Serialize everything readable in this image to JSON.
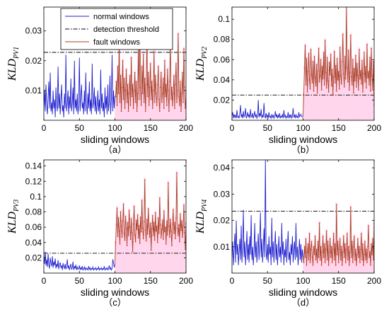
{
  "colors": {
    "normal": "#1f1fcf",
    "fault": "#a8452a",
    "fault_marker": "#ff2a2a",
    "threshold": "#000000",
    "highlight": "#ffd6ec"
  },
  "legend": {
    "placement": "top-left of panel (a)",
    "items": [
      {
        "label": "normal windows",
        "style": "solid",
        "color": "#1f1fcf"
      },
      {
        "label": "detection threshold",
        "style": "dashdot",
        "color": "#000000"
      },
      {
        "label": "fault windows",
        "style": "solid",
        "color": "#a8452a"
      }
    ]
  },
  "chart_data": [
    {
      "id": "a",
      "type": "line",
      "caption": "（a）",
      "xlabel": "sliding windows",
      "ylabel": {
        "main": "KLD",
        "sub": "PV1"
      },
      "xlim": [
        0,
        200
      ],
      "ylim": [
        0,
        0.038
      ],
      "xticks": [
        0,
        50,
        100,
        150,
        200
      ],
      "yticks": [
        0.01,
        0.02,
        0.03
      ],
      "threshold": 0.0228,
      "fault_start": 100,
      "series": [
        {
          "role": "normal",
          "values": [
            0.004,
            0.01,
            0.003,
            0.012,
            0.005,
            0.002,
            0.008,
            0.013,
            0.004,
            0.016,
            0.003,
            0.006,
            0.002,
            0.01,
            0.004,
            0.007,
            0.001,
            0.011,
            0.005,
            0.003,
            0.018,
            0.004,
            0.009,
            0.002,
            0.007,
            0.012,
            0.003,
            0.005,
            0.001,
            0.009,
            0.004,
            0.022,
            0.003,
            0.006,
            0.01,
            0.002,
            0.008,
            0.004,
            0.014,
            0.003,
            0.006,
            0.011,
            0.002,
            0.02,
            0.004,
            0.007,
            0.003,
            0.009,
            0.002,
            0.005,
            0.021,
            0.003,
            0.008,
            0.012,
            0.004,
            0.006,
            0.002,
            0.01,
            0.003,
            0.016,
            0.005,
            0.002,
            0.009,
            0.004,
            0.013,
            0.003,
            0.007,
            0.002,
            0.019,
            0.004,
            0.006,
            0.011,
            0.003,
            0.008,
            0.002,
            0.005,
            0.01,
            0.003,
            0.007,
            0.002,
            0.017,
            0.004,
            0.009,
            0.003,
            0.006,
            0.001,
            0.011,
            0.004,
            0.008,
            0.002,
            0.012,
            0.003,
            0.006,
            0.015,
            0.002,
            0.007,
            0.022,
            0.003,
            0.01,
            0.004,
            0.008
          ]
        },
        {
          "role": "fault",
          "values": [
            0.008,
            0.013,
            0.005,
            0.018,
            0.009,
            0.026,
            0.006,
            0.015,
            0.003,
            0.011,
            0.02,
            0.007,
            0.014,
            0.004,
            0.01,
            0.017,
            0.006,
            0.012,
            0.003,
            0.009,
            0.015,
            0.005,
            0.021,
            0.008,
            0.012,
            0.004,
            0.01,
            0.016,
            0.006,
            0.013,
            0.003,
            0.009,
            0.024,
            0.007,
            0.033,
            0.011,
            0.005,
            0.018,
            0.009,
            0.022,
            0.006,
            0.014,
            0.003,
            0.012,
            0.027,
            0.008,
            0.016,
            0.005,
            0.011,
            0.019,
            0.007,
            0.013,
            0.004,
            0.01,
            0.023,
            0.006,
            0.015,
            0.009,
            0.005,
            0.012,
            0.018,
            0.007,
            0.003,
            0.011,
            0.016,
            0.006,
            0.009,
            0.014,
            0.004,
            0.02,
            0.008,
            0.012,
            0.005,
            0.017,
            0.01,
            0.003,
            0.013,
            0.026,
            0.007,
            0.011,
            0.005,
            0.009,
            0.015,
            0.004,
            0.012,
            0.019,
            0.006,
            0.01,
            0.029,
            0.008,
            0.005,
            0.013,
            0.003,
            0.009,
            0.016,
            0.006,
            0.024,
            0.011,
            0.004,
            0.007
          ]
        }
      ]
    },
    {
      "id": "b",
      "type": "line",
      "caption": "（b）",
      "xlabel": "sliding windows",
      "ylabel": {
        "main": "KLD",
        "sub": "PV2"
      },
      "xlim": [
        0,
        200
      ],
      "ylim": [
        0,
        0.112
      ],
      "xticks": [
        0,
        50,
        100,
        150,
        200
      ],
      "yticks": [
        0.02,
        0.04,
        0.06,
        0.08,
        0.1
      ],
      "threshold": 0.025,
      "fault_start": 100,
      "series": [
        {
          "role": "normal",
          "values": [
            0.004,
            0.008,
            0.002,
            0.006,
            0.003,
            0.005,
            0.002,
            0.01,
            0.003,
            0.004,
            0.002,
            0.007,
            0.015,
            0.003,
            0.006,
            0.002,
            0.009,
            0.003,
            0.005,
            0.012,
            0.002,
            0.004,
            0.008,
            0.003,
            0.006,
            0.002,
            0.011,
            0.004,
            0.003,
            0.007,
            0.002,
            0.005,
            0.009,
            0.003,
            0.006,
            0.002,
            0.004,
            0.02,
            0.003,
            0.007,
            0.004,
            0.011,
            0.002,
            0.005,
            0.003,
            0.017,
            0.004,
            0.002,
            0.007,
            0.003,
            0.005,
            0.002,
            0.008,
            0.003,
            0.004,
            0.002,
            0.006,
            0.003,
            0.005,
            0.002,
            0.004,
            0.009,
            0.003,
            0.006,
            0.002,
            0.005,
            0.003,
            0.007,
            0.002,
            0.004,
            0.003,
            0.006,
            0.002,
            0.01,
            0.003,
            0.005,
            0.002,
            0.004,
            0.003,
            0.008,
            0.002,
            0.005,
            0.003,
            0.006,
            0.002,
            0.004,
            0.012,
            0.003,
            0.005,
            0.002,
            0.006,
            0.003,
            0.004,
            0.002,
            0.008,
            0.003,
            0.005,
            0.006,
            0.004,
            0.003,
            0.004
          ]
        },
        {
          "role": "fault",
          "values": [
            0.025,
            0.052,
            0.074,
            0.035,
            0.061,
            0.028,
            0.048,
            0.066,
            0.04,
            0.031,
            0.07,
            0.045,
            0.037,
            0.058,
            0.029,
            0.063,
            0.042,
            0.034,
            0.055,
            0.027,
            0.049,
            0.071,
            0.038,
            0.044,
            0.06,
            0.03,
            0.053,
            0.041,
            0.067,
            0.035,
            0.079,
            0.047,
            0.032,
            0.062,
            0.039,
            0.028,
            0.057,
            0.045,
            0.065,
            0.034,
            0.05,
            0.026,
            0.043,
            0.068,
            0.037,
            0.054,
            0.029,
            0.061,
            0.04,
            0.048,
            0.031,
            0.072,
            0.044,
            0.036,
            0.058,
            0.085,
            0.046,
            0.033,
            0.063,
            0.041,
            0.112,
            0.052,
            0.038,
            0.069,
            0.03,
            0.047,
            0.084,
            0.043,
            0.035,
            0.06,
            0.027,
            0.051,
            0.039,
            0.064,
            0.033,
            0.056,
            0.044,
            0.03,
            0.07,
            0.041,
            0.049,
            0.036,
            0.059,
            0.028,
            0.046,
            0.067,
            0.038,
            0.053,
            0.032,
            0.075,
            0.042,
            0.048,
            0.035,
            0.062,
            0.029,
            0.071,
            0.044,
            0.03,
            0.058,
            0.015
          ]
        }
      ]
    },
    {
      "id": "c",
      "type": "line",
      "caption": "（c）",
      "xlabel": "sliding windows",
      "ylabel": {
        "main": "KLD",
        "sub": "PV3"
      },
      "xlim": [
        0,
        200
      ],
      "ylim": [
        0,
        0.148
      ],
      "xticks": [
        0,
        50,
        100,
        150,
        200
      ],
      "yticks": [
        0.02,
        0.04,
        0.06,
        0.08,
        0.1,
        0.12,
        0.14
      ],
      "threshold": 0.026,
      "fault_start": 100,
      "series": [
        {
          "role": "normal",
          "values": [
            0.022,
            0.012,
            0.028,
            0.01,
            0.018,
            0.008,
            0.025,
            0.011,
            0.006,
            0.02,
            0.013,
            0.009,
            0.022,
            0.007,
            0.015,
            0.01,
            0.019,
            0.006,
            0.012,
            0.008,
            0.017,
            0.005,
            0.011,
            0.014,
            0.007,
            0.01,
            0.004,
            0.013,
            0.008,
            0.006,
            0.012,
            0.005,
            0.009,
            0.018,
            0.006,
            0.01,
            0.004,
            0.008,
            0.012,
            0.005,
            0.007,
            0.015,
            0.004,
            0.009,
            0.006,
            0.011,
            0.004,
            0.008,
            0.005,
            0.006,
            0.01,
            0.004,
            0.007,
            0.005,
            0.009,
            0.004,
            0.006,
            0.008,
            0.004,
            0.007,
            0.005,
            0.006,
            0.004,
            0.009,
            0.005,
            0.007,
            0.004,
            0.006,
            0.005,
            0.008,
            0.004,
            0.006,
            0.005,
            0.007,
            0.004,
            0.006,
            0.005,
            0.008,
            0.004,
            0.006,
            0.005,
            0.007,
            0.004,
            0.006,
            0.005,
            0.009,
            0.004,
            0.006,
            0.005,
            0.007,
            0.004,
            0.006,
            0.01,
            0.005,
            0.007,
            0.004,
            0.006,
            0.018,
            0.013,
            0.008,
            0.01
          ]
        },
        {
          "role": "fault",
          "values": [
            0.04,
            0.063,
            0.085,
            0.048,
            0.072,
            0.055,
            0.038,
            0.08,
            0.061,
            0.047,
            0.068,
            0.09,
            0.052,
            0.043,
            0.074,
            0.058,
            0.036,
            0.066,
            0.049,
            0.082,
            0.06,
            0.044,
            0.071,
            0.053,
            0.028,
            0.064,
            0.087,
            0.05,
            0.041,
            0.069,
            0.057,
            0.076,
            0.046,
            0.062,
            0.039,
            0.073,
            0.054,
            0.095,
            0.059,
            0.045,
            0.067,
            0.122,
            0.056,
            0.042,
            0.07,
            0.051,
            0.084,
            0.062,
            0.047,
            0.065,
            0.03,
            0.058,
            0.075,
            0.049,
            0.066,
            0.043,
            0.079,
            0.055,
            0.061,
            0.04,
            0.072,
            0.052,
            0.098,
            0.063,
            0.046,
            0.057,
            0.069,
            0.044,
            0.081,
            0.054,
            0.06,
            0.038,
            0.068,
            0.05,
            0.118,
            0.061,
            0.047,
            0.07,
            0.055,
            0.036,
            0.064,
            0.083,
            0.052,
            0.066,
            0.045,
            0.072,
            0.131,
            0.058,
            0.049,
            0.063,
            0.041,
            0.077,
            0.056,
            0.068,
            0.047,
            0.062,
            0.089,
            0.053,
            0.031,
            0.065
          ]
        }
      ]
    },
    {
      "id": "d",
      "type": "line",
      "caption": "（d）",
      "xlabel": "sliding windows",
      "ylabel": {
        "main": "KLD",
        "sub": "PV4"
      },
      "xlim": [
        0,
        200
      ],
      "ylim": [
        0,
        0.043
      ],
      "xticks": [
        0,
        50,
        100,
        150,
        200
      ],
      "yticks": [
        0.01,
        0.02,
        0.03,
        0.04
      ],
      "threshold": 0.0235,
      "fault_start": 100,
      "series": [
        {
          "role": "normal",
          "values": [
            0.006,
            0.012,
            0.003,
            0.009,
            0.015,
            0.004,
            0.02,
            0.007,
            0.011,
            0.003,
            0.008,
            0.013,
            0.005,
            0.018,
            0.004,
            0.01,
            0.024,
            0.006,
            0.012,
            0.003,
            0.009,
            0.016,
            0.005,
            0.011,
            0.004,
            0.014,
            0.007,
            0.022,
            0.005,
            0.01,
            0.003,
            0.008,
            0.019,
            0.006,
            0.012,
            0.004,
            0.009,
            0.015,
            0.005,
            0.011,
            0.023,
            0.006,
            0.013,
            0.004,
            0.009,
            0.017,
            0.006,
            0.043,
            0.008,
            0.005,
            0.011,
            0.004,
            0.014,
            0.007,
            0.01,
            0.003,
            0.021,
            0.006,
            0.012,
            0.004,
            0.009,
            0.016,
            0.005,
            0.011,
            0.003,
            0.008,
            0.014,
            0.006,
            0.01,
            0.004,
            0.019,
            0.007,
            0.012,
            0.003,
            0.009,
            0.006,
            0.013,
            0.004,
            0.01,
            0.016,
            0.005,
            0.008,
            0.003,
            0.011,
            0.007,
            0.014,
            0.004,
            0.009,
            0.012,
            0.005,
            0.019,
            0.006,
            0.01,
            0.003,
            0.008,
            0.013,
            0.005,
            0.011,
            0.004,
            0.009,
            0.006
          ]
        },
        {
          "role": "fault",
          "values": [
            0.004,
            0.01,
            0.006,
            0.013,
            0.003,
            0.008,
            0.011,
            0.005,
            0.015,
            0.004,
            0.009,
            0.012,
            0.006,
            0.003,
            0.01,
            0.007,
            0.014,
            0.005,
            0.009,
            0.004,
            0.012,
            0.006,
            0.019,
            0.005,
            0.01,
            0.003,
            0.008,
            0.014,
            0.006,
            0.011,
            0.004,
            0.009,
            0.016,
            0.005,
            0.012,
            0.003,
            0.008,
            0.013,
            0.006,
            0.01,
            0.004,
            0.009,
            0.015,
            0.005,
            0.011,
            0.003,
            0.026,
            0.007,
            0.012,
            0.004,
            0.009,
            0.013,
            0.005,
            0.01,
            0.003,
            0.008,
            0.014,
            0.006,
            0.011,
            0.004,
            0.009,
            0.015,
            0.005,
            0.01,
            0.003,
            0.008,
            0.025,
            0.006,
            0.012,
            0.004,
            0.01,
            0.014,
            0.005,
            0.009,
            0.003,
            0.007,
            0.013,
            0.006,
            0.01,
            0.004,
            0.009,
            0.015,
            0.005,
            0.011,
            0.003,
            0.007,
            0.012,
            0.005,
            0.009,
            0.004,
            0.01,
            0.018,
            0.006,
            0.008,
            0.003,
            0.011,
            0.007,
            0.013,
            0.005,
            0.019
          ]
        }
      ]
    }
  ]
}
